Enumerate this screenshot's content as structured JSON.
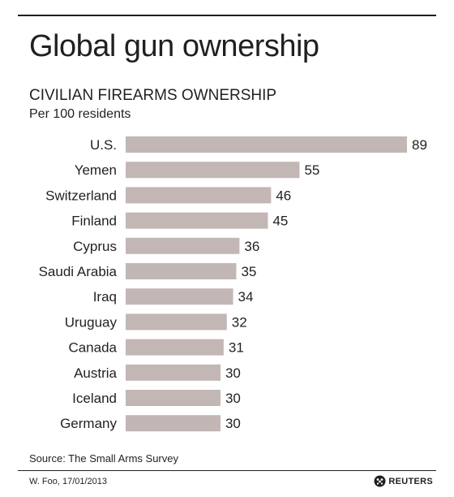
{
  "rules": {
    "color": "#231f20"
  },
  "bar_color": "#c2b7b5",
  "chart_data": {
    "type": "bar",
    "orientation": "horizontal",
    "title": "Global gun ownership",
    "subtitle": "CIVILIAN FIREARMS OWNERSHIP",
    "unit_label": "Per 100 residents",
    "categories": [
      "U.S.",
      "Yemen",
      "Switzerland",
      "Finland",
      "Cyprus",
      "Saudi Arabia",
      "Iraq",
      "Uruguay",
      "Canada",
      "Austria",
      "Iceland",
      "Germany"
    ],
    "values": [
      89,
      55,
      46,
      45,
      36,
      35,
      34,
      32,
      31,
      30,
      30,
      30
    ],
    "xlim": [
      0,
      89
    ],
    "grid": false,
    "legend": "none",
    "data_labels": true
  },
  "footer": {
    "source": "Source: The Small Arms Survey",
    "credit": "W. Foo, 17/01/2013",
    "logo_text": "REUTERS"
  }
}
